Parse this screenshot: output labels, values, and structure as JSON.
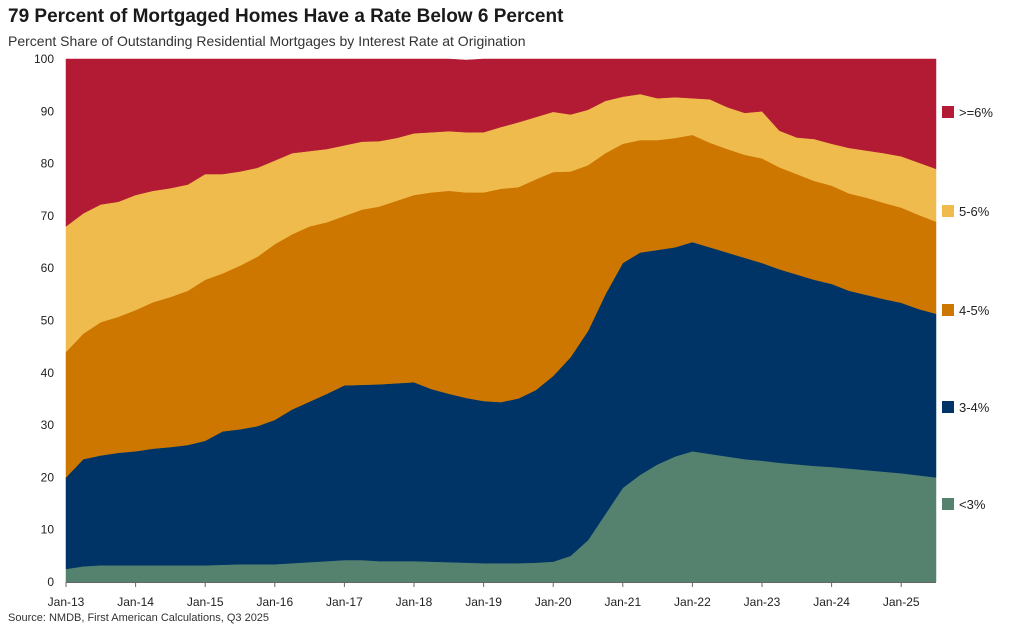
{
  "header": {
    "title": "79 Percent of Mortgaged Homes Have a Rate Below 6 Percent",
    "subtitle": "Percent Share of Outstanding Residential Mortgages by Interest Rate at Origination"
  },
  "footer": {
    "source": "Source: NMDB, First American Calculations, Q3 2025"
  },
  "chart_data": {
    "type": "area",
    "stacked": true,
    "title": "79 Percent of Mortgaged Homes Have a Rate Below 6 Percent",
    "subtitle": "Percent Share of Outstanding Residential Mortgages by Interest Rate at Origination",
    "xlabel": "",
    "ylabel": "",
    "ylim": [
      0,
      100
    ],
    "yticks": [
      0,
      10,
      20,
      30,
      40,
      50,
      60,
      70,
      80,
      90,
      100
    ],
    "xlim": [
      2013.0,
      2025.5
    ],
    "xtick_labels": [
      "Jan-13",
      "Jan-14",
      "Jan-15",
      "Jan-16",
      "Jan-17",
      "Jan-18",
      "Jan-19",
      "Jan-20",
      "Jan-21",
      "Jan-22",
      "Jan-23",
      "Jan-24",
      "Jan-25"
    ],
    "xtick_values": [
      2013,
      2014,
      2015,
      2016,
      2017,
      2018,
      2019,
      2020,
      2021,
      2022,
      2023,
      2024,
      2025
    ],
    "x": [
      2013.0,
      2013.25,
      2013.5,
      2013.75,
      2014.0,
      2014.25,
      2014.5,
      2014.75,
      2015.0,
      2015.25,
      2015.5,
      2015.75,
      2016.0,
      2016.25,
      2016.5,
      2016.75,
      2017.0,
      2017.25,
      2017.5,
      2017.75,
      2018.0,
      2018.25,
      2018.5,
      2018.75,
      2019.0,
      2019.25,
      2019.5,
      2019.75,
      2020.0,
      2020.25,
      2020.5,
      2020.75,
      2021.0,
      2021.25,
      2021.5,
      2021.75,
      2022.0,
      2022.25,
      2022.5,
      2022.75,
      2023.0,
      2023.25,
      2023.5,
      2023.75,
      2024.0,
      2024.25,
      2024.5,
      2024.75,
      2025.0,
      2025.25,
      2025.5
    ],
    "series_colors": [
      "#55826f",
      "#003366",
      "#cd7700",
      "#f0bb4d",
      "#b31b34"
    ],
    "series": [
      {
        "name": "<3%",
        "values": [
          2.5,
          3.0,
          3.2,
          3.2,
          3.2,
          3.2,
          3.2,
          3.2,
          3.2,
          3.3,
          3.4,
          3.4,
          3.4,
          3.6,
          3.8,
          4.0,
          4.2,
          4.2,
          4.0,
          4.0,
          4.0,
          3.9,
          3.8,
          3.7,
          3.6,
          3.6,
          3.6,
          3.7,
          3.9,
          5.0,
          8.0,
          13.0,
          18.0,
          20.5,
          22.5,
          24.0,
          25.0,
          24.5,
          24.0,
          23.5,
          23.2,
          22.8,
          22.5,
          22.2,
          22.0,
          21.7,
          21.4,
          21.1,
          20.8,
          20.4,
          20.0
        ]
      },
      {
        "name": "3-4%",
        "values": [
          17.5,
          20.5,
          21.0,
          21.5,
          21.8,
          22.3,
          22.6,
          23.0,
          23.8,
          25.5,
          25.8,
          26.4,
          27.6,
          29.4,
          30.7,
          32.0,
          33.4,
          33.5,
          33.8,
          34.0,
          34.2,
          33.0,
          32.2,
          31.5,
          31.0,
          30.8,
          31.5,
          33.0,
          35.5,
          38.0,
          40.0,
          42.0,
          43.0,
          42.5,
          41.0,
          40.0,
          40.0,
          39.5,
          39.0,
          38.5,
          37.8,
          37.0,
          36.3,
          35.6,
          35.0,
          34.0,
          33.5,
          33.0,
          32.6,
          31.8,
          31.3
        ]
      },
      {
        "name": "4-5%",
        "values": [
          24.0,
          24.0,
          25.5,
          26.0,
          27.0,
          28.0,
          28.7,
          29.5,
          30.8,
          30.2,
          31.3,
          32.4,
          33.6,
          33.5,
          33.5,
          32.8,
          32.4,
          33.5,
          34.0,
          34.9,
          35.8,
          37.6,
          38.8,
          39.3,
          39.9,
          40.8,
          40.4,
          40.3,
          39.0,
          35.5,
          31.7,
          27.0,
          22.8,
          21.5,
          21.0,
          20.9,
          20.5,
          20.0,
          19.8,
          19.7,
          20.0,
          19.5,
          19.2,
          18.9,
          18.8,
          18.6,
          18.6,
          18.4,
          18.2,
          18.0,
          17.6
        ]
      },
      {
        "name": "5-6%",
        "values": [
          24.0,
          23.0,
          22.5,
          22.0,
          22.0,
          21.3,
          20.8,
          20.3,
          20.2,
          19.0,
          18.0,
          17.0,
          16.0,
          15.5,
          14.4,
          14.0,
          13.5,
          13.0,
          12.5,
          12.0,
          11.8,
          11.5,
          11.4,
          11.5,
          11.5,
          11.8,
          12.4,
          11.9,
          11.5,
          10.9,
          10.6,
          10.0,
          9.0,
          8.8,
          8.0,
          7.8,
          7.0,
          8.3,
          8.0,
          8.0,
          9.0,
          7.0,
          7.0,
          8.0,
          8.0,
          8.7,
          9.0,
          9.5,
          9.8,
          10.0,
          10.1
        ]
      },
      {
        "name": ">=6%",
        "values": [
          32.0,
          29.5,
          27.8,
          27.3,
          26.0,
          25.2,
          24.7,
          24.0,
          22.5,
          22.0,
          21.5,
          20.8,
          19.4,
          18.0,
          17.6,
          17.2,
          16.5,
          15.8,
          15.7,
          15.1,
          14.2,
          14.0,
          13.8,
          13.8,
          14.0,
          13.0,
          12.1,
          11.1,
          10.1,
          10.6,
          9.7,
          8.0,
          7.2,
          7.2,
          7.5,
          7.3,
          7.5,
          7.7,
          9.2,
          10.3,
          10.0,
          13.7,
          15.0,
          15.3,
          16.2,
          17.0,
          17.5,
          18.0,
          18.6,
          19.8,
          21.0
        ]
      }
    ],
    "legend": {
      "placement": "right",
      "entries": [
        ">=6%",
        "5-6%",
        "4-5%",
        "3-4%",
        "<3%"
      ]
    }
  }
}
